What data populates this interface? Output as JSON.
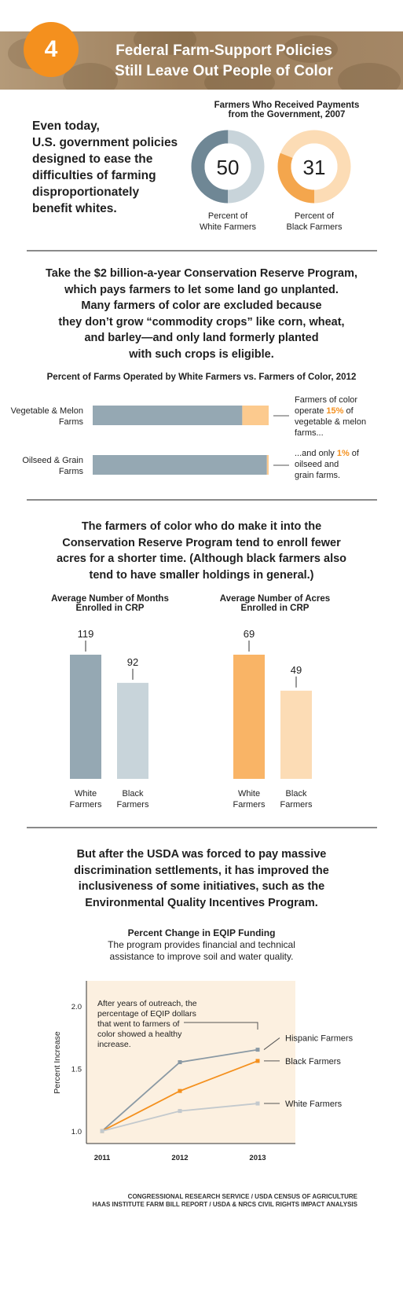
{
  "header": {
    "number": "4",
    "title_line1": "Federal Farm-Support Policies",
    "title_line2": "Still Leave Out People of Color"
  },
  "colors": {
    "white_farmers": "#95a8b3",
    "white_farmers_light": "#c8d4da",
    "black_farmers": "#f9b466",
    "black_farmers_light": "#fcdcb5",
    "accent": "#f4901e",
    "hispanic_line": "#8a99a4",
    "chart_bg": "#fcf0e0"
  },
  "intro": {
    "lines": [
      "Even today,",
      "U.S. government policies",
      "designed to ease the",
      "difficulties of farming",
      "disproportionately",
      "benefit whites."
    ]
  },
  "section1": {
    "paragraph_lines": [
      "Take the $2 billion-a-year Conservation Reserve Program,",
      "which pays farmers to let some land go unplanted.",
      "Many farmers of color are excluded because",
      "they don’t grow “commodity crops” like corn, wheat,",
      "and barley—and only land formerly planted",
      "with such crops is eligible."
    ]
  },
  "section2": {
    "paragraph_lines": [
      "The farmers of color who do make it into the",
      "Conservation Reserve Program tend to enroll fewer",
      "acres for a shorter time. (Although black farmers also",
      "tend to have smaller holdings in general.)"
    ]
  },
  "section3": {
    "paragraph_lines": [
      "But after the USDA was forced to pay massive",
      "discrimination settlements, it has improved the",
      "inclusiveness of some initiatives, such as the",
      "Environmental Quality Incentives Program."
    ]
  },
  "sources": {
    "line1": "CONGRESSIONAL RESEARCH SERVICE / USDA CENSUS OF AGRICULTURE",
    "line2": "HAAS INSTITUTE FARM BILL REPORT / USDA & NRCS CIVIL RIGHTS IMPACT ANALYSIS"
  },
  "chart_data": [
    {
      "type": "pie",
      "title": "Farmers Who Received Payments from the Government, 2007",
      "title_lines": [
        "Farmers Who Received Payments",
        "from the Government, 2007"
      ],
      "series": [
        {
          "name": "Percent of White Farmers",
          "label_lines": [
            "Percent of",
            "White Farmers"
          ],
          "value": 50
        },
        {
          "name": "Percent of Black Farmers",
          "label_lines": [
            "Percent of",
            "Black Farmers"
          ],
          "value": 31
        }
      ]
    },
    {
      "type": "bar",
      "orientation": "horizontal",
      "stacked": true,
      "title": "Percent of Farms Operated by White Farmers vs. Farmers of Color, 2012",
      "categories": [
        "Vegetable & Melon Farms",
        "Oilseed & Grain Farms"
      ],
      "category_lines": [
        [
          "Vegetable & Melon",
          "Farms"
        ],
        [
          "Oilseed & Grain",
          "Farms"
        ]
      ],
      "series": [
        {
          "name": "White Farmers",
          "values": [
            85,
            99
          ]
        },
        {
          "name": "Farmers of Color",
          "values": [
            15,
            1
          ]
        }
      ],
      "annotations": [
        {
          "pre": "Farmers of color",
          "mid_pre": "operate ",
          "highlight": "15%",
          "mid_post": " of",
          "post_lines": [
            "vegetable & melon",
            "farms..."
          ]
        },
        {
          "pre": "...and only ",
          "highlight": "1%",
          "mid_post": " of",
          "post_lines": [
            "oilseed and",
            "grain farms."
          ]
        }
      ]
    },
    {
      "type": "bar",
      "title": "Average Number of Months Enrolled in CRP",
      "title_lines": [
        "Average Number of Months",
        "Enrolled in CRP"
      ],
      "categories": [
        "White Farmers",
        "Black Farmers"
      ],
      "category_lines": [
        [
          "White",
          "Farmers"
        ],
        [
          "Black",
          "Farmers"
        ]
      ],
      "values": [
        119,
        92
      ],
      "ylim": [
        0,
        119
      ]
    },
    {
      "type": "bar",
      "title": "Average Number of Acres Enrolled in CRP",
      "title_lines": [
        "Average Number of Acres",
        "Enrolled in CRP"
      ],
      "categories": [
        "White Farmers",
        "Black Farmers"
      ],
      "category_lines": [
        [
          "White",
          "Farmers"
        ],
        [
          "Black",
          "Farmers"
        ]
      ],
      "values": [
        69,
        49
      ],
      "ylim": [
        0,
        69
      ]
    },
    {
      "type": "line",
      "title": "Percent Change in EQIP Funding",
      "subtitle_lines": [
        "The program provides financial and technical",
        "assistance to improve soil and water quality."
      ],
      "x": [
        "2011",
        "2012",
        "2013"
      ],
      "ylabel": "Percent Increase",
      "yticks": [
        "1.0",
        "1.5",
        "2.0"
      ],
      "ylim": [
        0.9,
        2.2
      ],
      "series": [
        {
          "name": "Hispanic Farmers",
          "values": [
            1.0,
            1.55,
            1.65
          ]
        },
        {
          "name": "Black Farmers",
          "values": [
            1.0,
            1.32,
            1.56
          ]
        },
        {
          "name": "White Farmers",
          "values": [
            1.0,
            1.16,
            1.22
          ]
        }
      ],
      "annotation_lines": [
        "After years of outreach, the",
        "percentage of EQIP dollars",
        "that went to farmers of",
        "color showed a healthy",
        "increase."
      ]
    }
  ]
}
